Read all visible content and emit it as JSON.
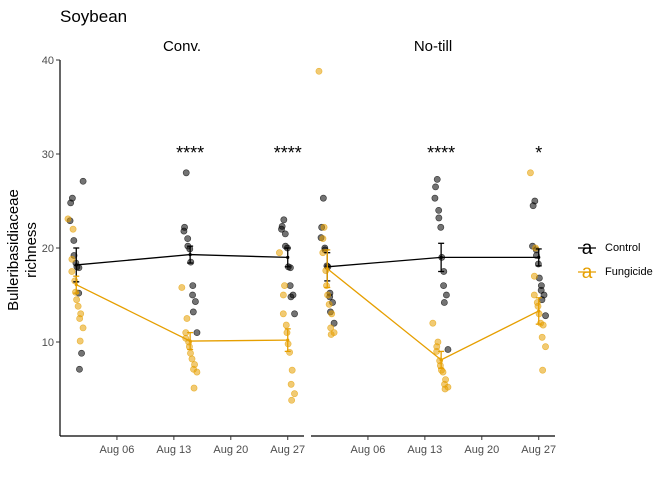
{
  "chart_data": {
    "type": "scatter",
    "title": "Soybean",
    "ylabel_lines": [
      "Bulleribasidiaceae",
      "richness"
    ],
    "xlabel": "",
    "ylim": [
      0,
      40
    ],
    "y_ticks": [
      10,
      20,
      30,
      40
    ],
    "x_tick_labels": [
      "Aug 06",
      "Aug 13",
      "Aug 20",
      "Aug 27"
    ],
    "x_tick_dates": [
      "2019-08-06",
      "2019-08-13",
      "2019-08-20",
      "2019-08-27"
    ],
    "x_range": [
      "2019-07-30",
      "2019-08-29"
    ],
    "legend": {
      "position": "right",
      "entries": [
        {
          "name": "Control",
          "color": "#000000"
        },
        {
          "name": "Fungicide",
          "color": "#E69F00"
        }
      ]
    },
    "panels": [
      {
        "name": "Conv.",
        "dates": [
          "2019-08-01",
          "2019-08-15",
          "2019-08-27"
        ],
        "significance": [
          "",
          "****",
          "****"
        ],
        "series": [
          {
            "name": "Control",
            "mean": [
              18.2,
              19.3,
              19.0
            ],
            "se": [
              1.8,
              0.9,
              1.0
            ],
            "points": [
              [
                25.3,
                24.8,
                22.9,
                20.8,
                19.2,
                18.4,
                18.0,
                17.9,
                15.2,
                8.8,
                7.1,
                27.1
              ],
              [
                28.0,
                22.2,
                21.8,
                21.0,
                20.2,
                19.9,
                18.5,
                16.0,
                15.0,
                14.3,
                13.2,
                11.0
              ],
              [
                23.0,
                22.3,
                22.0,
                21.5,
                20.2,
                20.0,
                18.0,
                17.9,
                16.0,
                15.0,
                14.8,
                13.0
              ]
            ]
          },
          {
            "name": "Fungicide",
            "mean": [
              16.1,
              10.1,
              10.2
            ],
            "se": [
              0.9,
              0.9,
              1.2
            ],
            "points": [
              [
                23.1,
                22.0,
                18.8,
                17.5,
                16.5,
                15.3,
                14.5,
                13.8,
                13.0,
                12.5,
                11.5,
                10.1
              ],
              [
                15.8,
                12.5,
                11.0,
                10.4,
                10.0,
                9.5,
                8.8,
                8.2,
                7.6,
                7.1,
                6.8,
                5.1
              ],
              [
                19.5,
                16.0,
                15.0,
                13.0,
                11.8,
                11.0,
                9.8,
                8.9,
                7.0,
                5.5,
                4.5,
                3.8
              ]
            ]
          }
        ]
      },
      {
        "name": "No-till",
        "dates": [
          "2019-08-01",
          "2019-08-15",
          "2019-08-27"
        ],
        "significance": [
          "",
          "****",
          "*"
        ],
        "series": [
          {
            "name": "Control",
            "mean": [
              18.0,
              19.0,
              19.0
            ],
            "se": [
              1.5,
              1.5,
              0.9
            ],
            "points": [
              [
                25.3,
                22.2,
                21.1,
                20.0,
                19.8,
                18.1,
                18.0,
                15.2,
                14.8,
                14.2,
                13.2,
                12.0
              ],
              [
                27.3,
                26.5,
                25.3,
                24.0,
                23.2,
                22.2,
                19.0,
                17.5,
                16.0,
                15.0,
                14.2,
                9.2
              ],
              [
                25.0,
                24.5,
                20.2,
                19.8,
                19.2,
                18.3,
                16.8,
                16.0,
                15.5,
                15.0,
                14.5,
                12.8
              ]
            ]
          },
          {
            "name": "Fungicide",
            "mean": [
              17.8,
              8.1,
              13.3
            ],
            "se": [
              2.0,
              0.9,
              1.4
            ],
            "points": [
              [
                38.8,
                22.2,
                21.0,
                19.5,
                17.6,
                16.0,
                15.0,
                14.0,
                13.0,
                11.5,
                11.0,
                10.8
              ],
              [
                12.0,
                10.0,
                9.5,
                9.0,
                8.0,
                7.5,
                7.0,
                6.8,
                6.0,
                5.5,
                5.2,
                5.0
              ],
              [
                28.0,
                20.0,
                17.0,
                15.0,
                14.2,
                13.8,
                13.0,
                12.0,
                11.8,
                10.5,
                9.5,
                7.0
              ]
            ]
          }
        ]
      }
    ]
  }
}
